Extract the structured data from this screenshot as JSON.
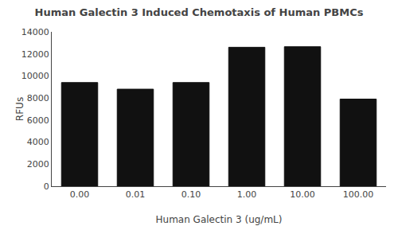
{
  "chart_data": {
    "type": "bar",
    "title": "Human Galectin 3 Induced Chemotaxis of Human PBMCs",
    "xlabel": "Human Galectin 3 (ug/mL)",
    "ylabel": "RFUs",
    "categories": [
      "0.00",
      "0.01",
      "0.10",
      "1.00",
      "10.00",
      "100.00"
    ],
    "values": [
      9400,
      8800,
      9400,
      12600,
      12650,
      7900
    ],
    "color": "#111111",
    "ylim": [
      0,
      14000
    ],
    "yticks": [
      0,
      2000,
      4000,
      6000,
      8000,
      10000,
      12000,
      14000
    ],
    "grid": false
  }
}
